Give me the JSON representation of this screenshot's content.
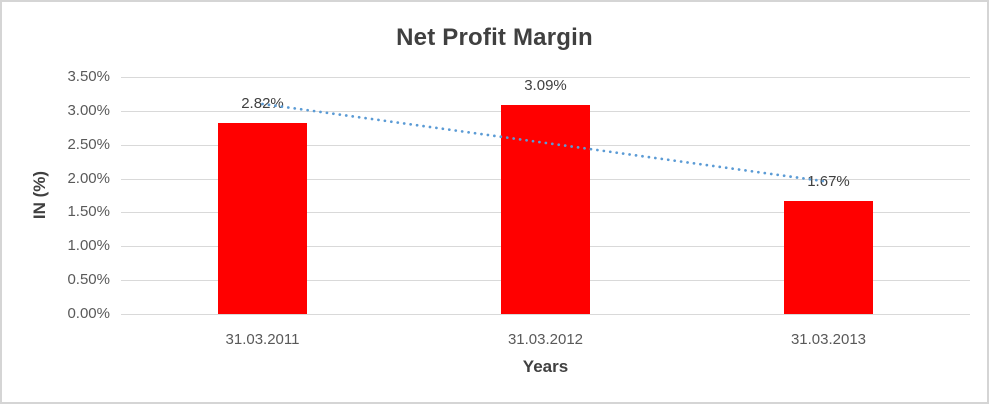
{
  "frame": {
    "background_color": "#FFFFFF",
    "border_color": "#D5D5D5"
  },
  "chart_data": {
    "type": "bar",
    "title": "Net Profit Margin",
    "xlabel": "Years",
    "ylabel": "IN (%)",
    "categories": [
      "31.03.2011",
      "31.03.2012",
      "31.03.2013"
    ],
    "values": [
      2.82,
      3.09,
      1.67
    ],
    "data_labels": [
      "2.82%",
      "3.09%",
      "1.67%"
    ],
    "ylim": [
      0,
      3.5
    ],
    "ytick_step": 0.5,
    "ytick_labels_top_to_bottom": [
      "3.50%",
      "3.00%",
      "2.50%",
      "2.00%",
      "1.50%",
      "1.00%",
      "0.50%",
      "0.00%"
    ],
    "grid": "horizontal",
    "legend": "none",
    "bar_color": "#FF0000",
    "gridline_color": "#D9D9D9",
    "text_color": "#404040",
    "tick_color": "#595959",
    "trendline": {
      "type": "linear",
      "style": "dotted",
      "color": "#5B9BD5",
      "endpoint_values": [
        3.1,
        1.95
      ]
    }
  }
}
